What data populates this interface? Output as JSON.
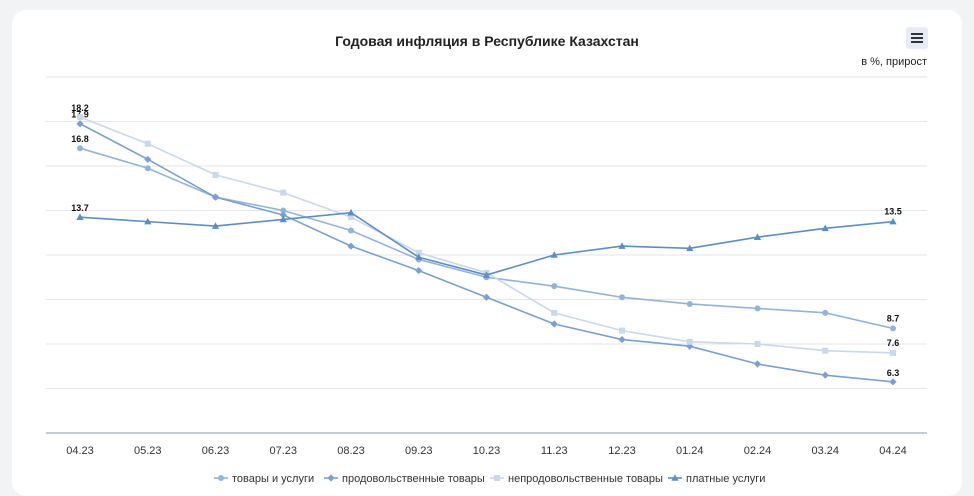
{
  "chart_data": {
    "type": "line",
    "title": "Годовая инфляция в Республике Казахстан",
    "unit_label": "в %, прирост",
    "categories": [
      "04.23",
      "05.23",
      "06.23",
      "07.23",
      "08.23",
      "09.23",
      "10.23",
      "11.23",
      "12.23",
      "01.24",
      "02.24",
      "03.24",
      "04.24"
    ],
    "ylim": [
      4,
      20
    ],
    "grid": true,
    "legend_position": "bottom",
    "series": [
      {
        "name": "товары и услуги",
        "marker": "circle",
        "color": "#92b4d9",
        "values": [
          16.8,
          15.9,
          14.6,
          14.0,
          13.1,
          11.8,
          11.0,
          10.6,
          10.1,
          9.8,
          9.6,
          9.4,
          8.7
        ],
        "labels": {
          "0": "16.8",
          "12": "8.7"
        }
      },
      {
        "name": "продовольственные товары",
        "marker": "diamond",
        "color": "#7aa0cf",
        "values": [
          17.9,
          16.3,
          14.6,
          13.8,
          12.4,
          11.3,
          10.1,
          8.9,
          8.2,
          7.9,
          7.1,
          6.6,
          6.3
        ],
        "labels": {
          "0": "17.9",
          "12": "6.3"
        }
      },
      {
        "name": "непродовольственные товары",
        "marker": "square",
        "color": "#c9d8eb",
        "values": [
          18.2,
          17.0,
          15.6,
          14.8,
          13.7,
          12.1,
          11.2,
          9.4,
          8.6,
          8.1,
          8.0,
          7.7,
          7.6
        ],
        "labels": {
          "0": "18.2",
          "12": "7.6"
        }
      },
      {
        "name": "платные услуги",
        "marker": "triangle",
        "color": "#5b8ec7",
        "values": [
          13.7,
          13.5,
          13.3,
          13.6,
          13.9,
          11.9,
          11.1,
          12.0,
          12.4,
          12.3,
          12.8,
          13.2,
          13.5
        ],
        "labels": {
          "0": "13.7",
          "12": "13.5"
        }
      }
    ]
  },
  "icons": {
    "menu": "hamburger-menu-icon"
  }
}
